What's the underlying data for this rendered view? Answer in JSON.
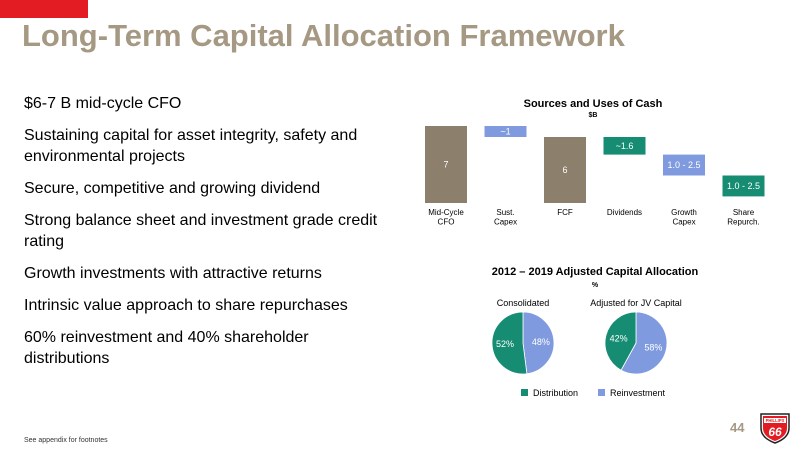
{
  "title": "Long-Term Capital Allocation Framework",
  "bullets": [
    "$6-7 B mid-cycle CFO",
    "Sustaining capital for asset integrity, safety and environmental projects",
    "Secure, competitive and growing dividend",
    "Strong balance sheet and investment grade credit rating",
    "Growth investments with attractive returns",
    "Intrinsic value approach to share repurchases",
    "60% reinvestment and 40% shareholder distributions"
  ],
  "footnote": "See appendix for footnotes",
  "page_number": "44",
  "logo": {
    "line1": "PHILLIPS",
    "line2": "66",
    "color": "#e31b23"
  },
  "colors": {
    "tan": "#8c7f6b",
    "blue": "#7f9ade",
    "green": "#168c72",
    "title": "#a69983"
  },
  "chart_data": [
    {
      "type": "bar",
      "variant": "waterfall",
      "title": "Sources and Uses of Cash",
      "subtitle": "$B",
      "categories": [
        "Mid-Cycle\nCFO",
        "Sust.\nCapex",
        "FCF",
        "Dividends",
        "Growth\nCapex",
        "Share\nRepurch."
      ],
      "bars": [
        {
          "category": "Mid-Cycle\nCFO",
          "label": "7",
          "start": 0,
          "end": 7,
          "color": "#8c7f6b"
        },
        {
          "category": "Sust.\nCapex",
          "label": "~1",
          "start": 6,
          "end": 7,
          "color": "#7f9ade"
        },
        {
          "category": "FCF",
          "label": "6",
          "start": 0,
          "end": 6,
          "color": "#8c7f6b"
        },
        {
          "category": "Dividends",
          "label": "~1.6",
          "start": 4.4,
          "end": 6,
          "color": "#168c72"
        },
        {
          "category": "Growth\nCapex",
          "label": "1.0 - 2.5",
          "start": 2.5,
          "end": 4.4,
          "color": "#7f9ade"
        },
        {
          "category": "Share\nRepurch.",
          "label": "1.0 - 2.5",
          "start": 0.6,
          "end": 2.5,
          "color": "#168c72"
        }
      ]
    },
    {
      "type": "pie",
      "title": "2012 – 2019 Adjusted Capital Allocation",
      "subtitle": "%",
      "legend": [
        {
          "name": "Distribution",
          "color": "#168c72"
        },
        {
          "name": "Reinvestment",
          "color": "#7f9ade"
        }
      ],
      "pies": [
        {
          "name": "Consolidated",
          "slices": [
            {
              "series": "Distribution",
              "value": 52,
              "label": "52%"
            },
            {
              "series": "Reinvestment",
              "value": 48,
              "label": "48%"
            }
          ]
        },
        {
          "name": "Adjusted for JV Capital",
          "slices": [
            {
              "series": "Distribution",
              "value": 42,
              "label": "42%"
            },
            {
              "series": "Reinvestment",
              "value": 58,
              "label": "58%"
            }
          ]
        }
      ]
    }
  ]
}
